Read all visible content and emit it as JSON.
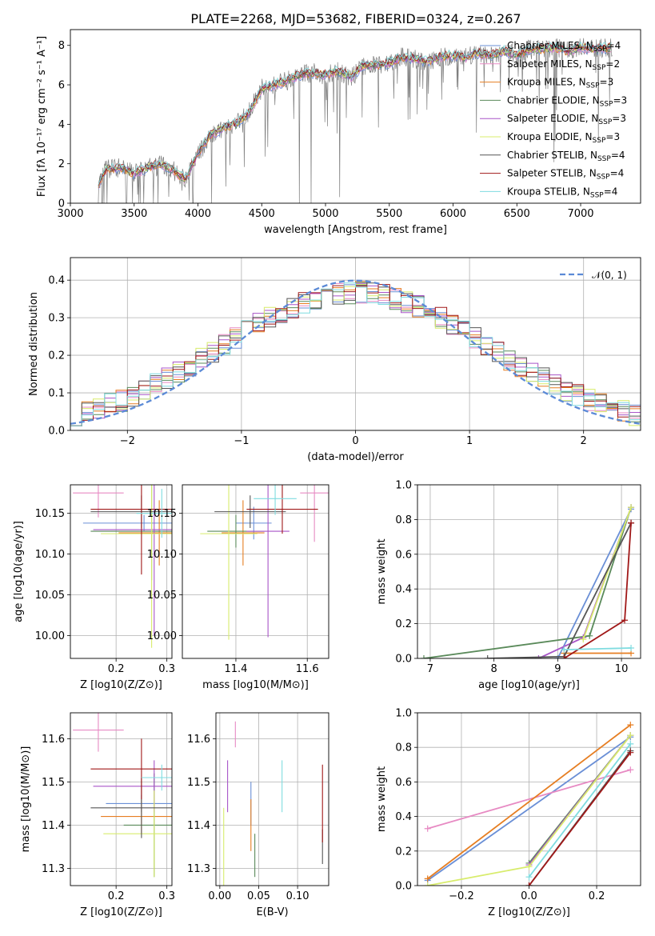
{
  "title": "PLATE=2268, MJD=53682, FIBERID=0324, z=0.267",
  "colors": {
    "chabrier_miles": "#6a8fd6",
    "salpeter_miles": "#e78ac3",
    "kroupa_miles": "#e67e22",
    "chabrier_elodie": "#5a8a5a",
    "salpeter_elodie": "#a855c8",
    "kroupa_elodie": "#d8ec6c",
    "chabrier_stelib": "#555555",
    "salpeter_stelib": "#a01818",
    "kroupa_stelib": "#7fdce0",
    "data": "#808080"
  },
  "chart_data": [
    {
      "id": "spectrum",
      "type": "line",
      "xlabel": "wavelength [Angstrom, rest frame]",
      "ylabel": "Flux [fλ 10⁻¹⁷ erg cm⁻² s⁻¹ A⁻¹]",
      "xlim": [
        3000,
        7470
      ],
      "ylim": [
        0,
        8.8
      ],
      "xticks": [
        "3000",
        "3500",
        "4000",
        "4500",
        "5000",
        "5500",
        "6000",
        "6500",
        "7000"
      ],
      "yticks": [
        "0",
        "2",
        "4",
        "6",
        "8"
      ],
      "legend_position": "upper right",
      "series": [
        {
          "name": "Chabrier MILES, N_SSP=4",
          "key": "chabrier_miles"
        },
        {
          "name": "Salpeter MILES, N_SSP=2",
          "key": "salpeter_miles"
        },
        {
          "name": "Kroupa MILES, N_SSP=3",
          "key": "kroupa_miles"
        },
        {
          "name": "Chabrier ELODIE, N_SSP=3",
          "key": "chabrier_elodie"
        },
        {
          "name": "Salpeter ELODIE, N_SSP=3",
          "key": "salpeter_elodie"
        },
        {
          "name": "Kroupa ELODIE, N_SSP=3",
          "key": "kroupa_elodie"
        },
        {
          "name": "Chabrier STELIB, N_SSP=4",
          "key": "chabrier_stelib"
        },
        {
          "name": "Salpeter STELIB, N_SSP=4",
          "key": "salpeter_stelib"
        },
        {
          "name": "Kroupa STELIB, N_SSP=4",
          "key": "kroupa_stelib"
        }
      ],
      "continuum": [
        [
          3220,
          1.0
        ],
        [
          3280,
          1.7
        ],
        [
          3400,
          1.8
        ],
        [
          3500,
          1.5
        ],
        [
          3600,
          1.8
        ],
        [
          3700,
          2.0
        ],
        [
          3800,
          1.7
        ],
        [
          3900,
          1.2
        ],
        [
          4000,
          2.5
        ],
        [
          4100,
          3.5
        ],
        [
          4200,
          3.8
        ],
        [
          4300,
          4.0
        ],
        [
          4400,
          4.6
        ],
        [
          4500,
          5.8
        ],
        [
          4600,
          6.0
        ],
        [
          4700,
          6.2
        ],
        [
          4800,
          6.5
        ],
        [
          4900,
          6.6
        ],
        [
          5000,
          6.5
        ],
        [
          5100,
          6.7
        ],
        [
          5200,
          6.4
        ],
        [
          5300,
          7.0
        ],
        [
          5400,
          7.0
        ],
        [
          5500,
          7.1
        ],
        [
          5600,
          7.4
        ],
        [
          5700,
          7.3
        ],
        [
          5800,
          7.2
        ],
        [
          5900,
          7.4
        ],
        [
          6000,
          7.5
        ],
        [
          6100,
          7.4
        ],
        [
          6200,
          7.6
        ],
        [
          6300,
          7.5
        ],
        [
          6400,
          7.7
        ],
        [
          6500,
          7.5
        ],
        [
          6600,
          7.8
        ],
        [
          6700,
          7.8
        ],
        [
          6800,
          7.9
        ],
        [
          6900,
          7.7
        ],
        [
          7000,
          7.9
        ],
        [
          7100,
          7.8
        ],
        [
          7250,
          7.9
        ]
      ]
    },
    {
      "id": "residuals",
      "type": "histogram",
      "xlabel": "(data-model)/error",
      "ylabel": "Normed distribution",
      "xlim": [
        -2.5,
        2.5
      ],
      "ylim": [
        0,
        0.46
      ],
      "xticks": [
        "−2",
        "−1",
        "0",
        "1",
        "2"
      ],
      "yticks": [
        "0.0",
        "0.1",
        "0.2",
        "0.3",
        "0.4"
      ],
      "reference_label": "𝒩(0, 1)",
      "bin_width": 0.1
    },
    {
      "id": "age_vs_Z",
      "type": "scatter",
      "xlabel": "Z [log10(Z/Z⊙)]",
      "ylabel": "age  [log10(age/yr)]",
      "xlim": [
        0.11,
        0.31
      ],
      "ylim": [
        9.972,
        10.185
      ],
      "xticks": [
        "0.2",
        "0.3"
      ],
      "yticks": [
        "10.00",
        "10.05",
        "10.10",
        "10.15"
      ],
      "points": [
        {
          "key": "chabrier_miles",
          "x": 0.255,
          "y": 10.138,
          "xerr": 0.12,
          "yerr": 0.01
        },
        {
          "key": "salpeter_miles",
          "x": 0.165,
          "y": 10.175,
          "xerr": 0.05,
          "yerr": 0.03
        },
        {
          "key": "kroupa_miles",
          "x": 0.285,
          "y": 10.126,
          "xerr": 0.08,
          "yerr": 0.04
        },
        {
          "key": "chabrier_elodie",
          "x": 0.27,
          "y": 10.128,
          "xerr": 0.12,
          "yerr": 0.06
        },
        {
          "key": "salpeter_elodie",
          "x": 0.275,
          "y": 10.13,
          "xerr": 0.12,
          "yerr": 0.13
        },
        {
          "key": "kroupa_elodie",
          "x": 0.27,
          "y": 10.125,
          "xerr": 0.1,
          "yerr": 0.14
        },
        {
          "key": "chabrier_stelib",
          "x": 0.25,
          "y": 10.152,
          "xerr": 0.1,
          "yerr": 0.02
        },
        {
          "key": "salpeter_stelib",
          "x": 0.25,
          "y": 10.155,
          "xerr": 0.1,
          "yerr": 0.08
        },
        {
          "key": "kroupa_stelib",
          "x": 0.29,
          "y": 10.15,
          "xerr": 0.05,
          "yerr": 0.03
        }
      ]
    },
    {
      "id": "age_vs_mass",
      "type": "scatter",
      "xlabel": "mass [log10(M/M⊙)]",
      "ylabel": "",
      "xlim": [
        11.25,
        11.66
      ],
      "ylim": [
        9.972,
        10.185
      ],
      "xticks": [
        "11.4",
        "11.6"
      ],
      "yticks": [
        "10.00",
        "10.05",
        "10.10",
        "10.15"
      ],
      "points": [
        {
          "key": "chabrier_miles",
          "x": 11.45,
          "y": 10.138,
          "xerr": 0.05,
          "yerr": 0.02
        },
        {
          "key": "salpeter_miles",
          "x": 11.62,
          "y": 10.175,
          "xerr": 0.04,
          "yerr": 0.06
        },
        {
          "key": "kroupa_miles",
          "x": 11.42,
          "y": 10.126,
          "xerr": 0.06,
          "yerr": 0.04
        },
        {
          "key": "chabrier_elodie",
          "x": 11.4,
          "y": 10.128,
          "xerr": 0.08,
          "yerr": 0.02
        },
        {
          "key": "salpeter_elodie",
          "x": 11.49,
          "y": 10.128,
          "xerr": 0.06,
          "yerr": 0.13
        },
        {
          "key": "kroupa_elodie",
          "x": 11.38,
          "y": 10.125,
          "xerr": 0.08,
          "yerr": 0.13
        },
        {
          "key": "chabrier_stelib",
          "x": 11.44,
          "y": 10.152,
          "xerr": 0.1,
          "yerr": 0.02
        },
        {
          "key": "salpeter_stelib",
          "x": 11.53,
          "y": 10.155,
          "xerr": 0.1,
          "yerr": 0.03
        },
        {
          "key": "kroupa_stelib",
          "x": 11.51,
          "y": 10.168,
          "xerr": 0.06,
          "yerr": 0.02
        }
      ]
    },
    {
      "id": "mass_weight_vs_age",
      "type": "line",
      "xlabel": "age  [log10(age/yr)]",
      "ylabel": "mass weight",
      "xlim": [
        6.8,
        10.3
      ],
      "ylim": [
        0,
        1.0
      ],
      "xticks": [
        "7",
        "8",
        "9",
        "10"
      ],
      "yticks": [
        "0.0",
        "0.2",
        "0.4",
        "0.6",
        "0.8",
        "1.0"
      ],
      "series": [
        {
          "key": "chabrier_miles",
          "x": [
            9.0,
            10.15
          ],
          "y": [
            0.0,
            0.86
          ]
        },
        {
          "key": "kroupa_miles",
          "x": [
            9.1,
            10.15
          ],
          "y": [
            0.03,
            0.03
          ]
        },
        {
          "key": "chabrier_elodie",
          "x": [
            6.9,
            9.5,
            10.15
          ],
          "y": [
            0.0,
            0.13,
            0.87
          ]
        },
        {
          "key": "salpeter_elodie",
          "x": [
            8.7,
            9.4,
            10.15
          ],
          "y": [
            0.0,
            0.12,
            0.87
          ]
        },
        {
          "key": "kroupa_elodie",
          "x": [
            9.4,
            10.15
          ],
          "y": [
            0.11,
            0.87
          ]
        },
        {
          "key": "chabrier_stelib",
          "x": [
            7.9,
            9.1,
            10.15
          ],
          "y": [
            0.0,
            0.01,
            0.78
          ]
        },
        {
          "key": "salpeter_stelib",
          "x": [
            9.1,
            10.05,
            10.15
          ],
          "y": [
            0.0,
            0.22,
            0.78
          ]
        },
        {
          "key": "kroupa_stelib",
          "x": [
            9.1,
            10.15
          ],
          "y": [
            0.05,
            0.06
          ]
        }
      ]
    },
    {
      "id": "mass_vs_Z",
      "type": "scatter",
      "xlabel": "Z [log10(Z/Z⊙)]",
      "ylabel": "mass [log10(M/M⊙)]",
      "xlim": [
        0.11,
        0.31
      ],
      "ylim": [
        11.26,
        11.66
      ],
      "xticks": [
        "0.2",
        "0.3"
      ],
      "yticks": [
        "11.3",
        "11.4",
        "11.5",
        "11.6"
      ],
      "points": [
        {
          "key": "chabrier_miles",
          "x": 0.25,
          "y": 11.45,
          "xerr": 0.07,
          "yerr": 0.02
        },
        {
          "key": "salpeter_miles",
          "x": 0.165,
          "y": 11.62,
          "xerr": 0.05,
          "yerr": 0.05
        },
        {
          "key": "kroupa_miles",
          "x": 0.25,
          "y": 11.42,
          "xerr": 0.08,
          "yerr": 0.04
        },
        {
          "key": "chabrier_elodie",
          "x": 0.275,
          "y": 11.4,
          "xerr": 0.06,
          "yerr": 0.12
        },
        {
          "key": "salpeter_elodie",
          "x": 0.275,
          "y": 11.49,
          "xerr": 0.12,
          "yerr": 0.06
        },
        {
          "key": "kroupa_elodie",
          "x": 0.275,
          "y": 11.38,
          "xerr": 0.1,
          "yerr": 0.1
        },
        {
          "key": "chabrier_stelib",
          "x": 0.25,
          "y": 11.44,
          "xerr": 0.1,
          "yerr": 0.07
        },
        {
          "key": "salpeter_stelib",
          "x": 0.25,
          "y": 11.53,
          "xerr": 0.1,
          "yerr": 0.07
        },
        {
          "key": "kroupa_stelib",
          "x": 0.29,
          "y": 11.51,
          "xerr": 0.04,
          "yerr": 0.03
        }
      ]
    },
    {
      "id": "mass_vs_ebv",
      "type": "scatter",
      "xlabel": "E(B-V)",
      "ylabel": "",
      "xlim": [
        -0.005,
        0.14
      ],
      "ylim": [
        11.26,
        11.66
      ],
      "xticks": [
        "0.00",
        "0.05",
        "0.10"
      ],
      "yticks": [
        "11.3",
        "11.4",
        "11.5",
        "11.6"
      ],
      "points": [
        {
          "key": "chabrier_miles",
          "x": 0.04,
          "y": 11.45,
          "yerr": 0.05
        },
        {
          "key": "salpeter_miles",
          "x": 0.02,
          "y": 11.61,
          "yerr": 0.03
        },
        {
          "key": "kroupa_miles",
          "x": 0.04,
          "y": 11.4,
          "yerr": 0.06
        },
        {
          "key": "chabrier_elodie",
          "x": 0.045,
          "y": 11.33,
          "yerr": 0.05
        },
        {
          "key": "salpeter_elodie",
          "x": 0.01,
          "y": 11.49,
          "yerr": 0.06
        },
        {
          "key": "kroupa_elodie",
          "x": 0.005,
          "y": 11.35,
          "yerr": 0.09
        },
        {
          "key": "chabrier_stelib",
          "x": 0.132,
          "y": 11.35,
          "yerr": 0.04
        },
        {
          "key": "salpeter_stelib",
          "x": 0.132,
          "y": 11.45,
          "yerr": 0.09
        },
        {
          "key": "kroupa_stelib",
          "x": 0.08,
          "y": 11.49,
          "yerr": 0.06
        }
      ]
    },
    {
      "id": "mass_weight_vs_Z",
      "type": "line",
      "xlabel": "Z [log10(Z/Z⊙)]",
      "ylabel": "mass weight",
      "xlim": [
        -0.33,
        0.33
      ],
      "ylim": [
        0,
        1.0
      ],
      "xticks": [
        "−0.2",
        "0.0",
        "0.2"
      ],
      "yticks": [
        "0.0",
        "0.2",
        "0.4",
        "0.6",
        "0.8",
        "1.0"
      ],
      "series": [
        {
          "key": "chabrier_miles",
          "x": [
            -0.3,
            0.3
          ],
          "y": [
            0.03,
            0.86
          ]
        },
        {
          "key": "salpeter_miles",
          "x": [
            -0.3,
            0.3
          ],
          "y": [
            0.33,
            0.67
          ]
        },
        {
          "key": "kroupa_miles",
          "x": [
            -0.3,
            0.3
          ],
          "y": [
            0.04,
            0.93
          ]
        },
        {
          "key": "chabrier_elodie",
          "x": [
            0.0,
            0.3
          ],
          "y": [
            0.13,
            0.87
          ]
        },
        {
          "key": "salpeter_elodie",
          "x": [
            0.0,
            0.3
          ],
          "y": [
            0.12,
            0.87
          ]
        },
        {
          "key": "kroupa_elodie",
          "x": [
            -0.3,
            0.0,
            0.3
          ],
          "y": [
            0.0,
            0.11,
            0.87
          ]
        },
        {
          "key": "chabrier_stelib",
          "x": [
            0.0,
            0.3
          ],
          "y": [
            0.0,
            0.78
          ]
        },
        {
          "key": "salpeter_stelib",
          "x": [
            0.0,
            0.3
          ],
          "y": [
            0.0,
            0.77
          ]
        },
        {
          "key": "kroupa_stelib",
          "x": [
            0.0,
            0.3
          ],
          "y": [
            0.05,
            0.82
          ]
        }
      ]
    }
  ]
}
